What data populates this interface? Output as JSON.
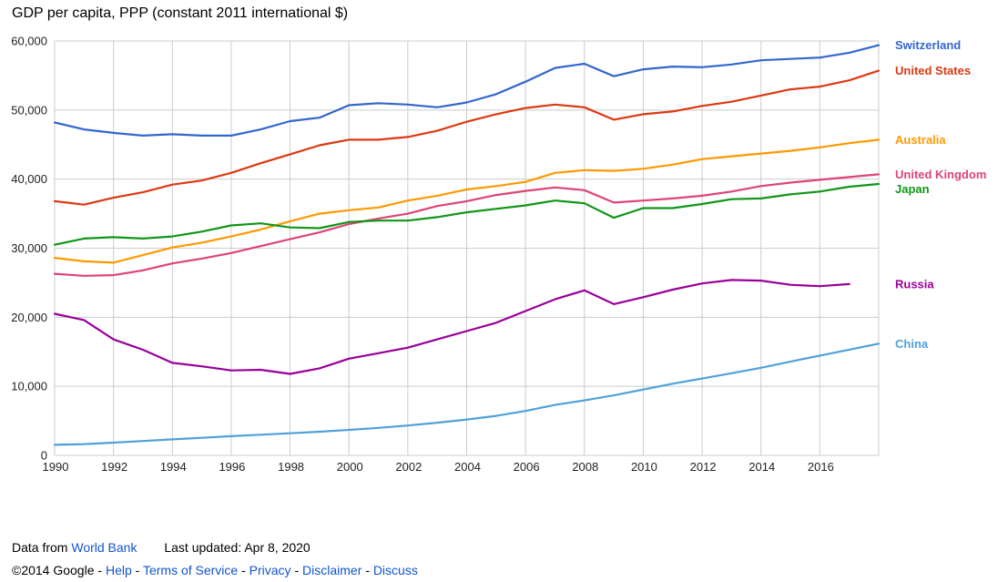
{
  "chart_data": {
    "type": "line",
    "title": "GDP per capita, PPP (constant 2011 international $)",
    "xlim": [
      1990,
      2018
    ],
    "ylim": [
      0,
      60000
    ],
    "grid": true,
    "legend_position": "right-end-labels",
    "x": [
      1990,
      1991,
      1992,
      1993,
      1994,
      1995,
      1996,
      1997,
      1998,
      1999,
      2000,
      2001,
      2002,
      2003,
      2004,
      2005,
      2006,
      2007,
      2008,
      2009,
      2010,
      2011,
      2012,
      2013,
      2014,
      2015,
      2016,
      2017,
      2018
    ],
    "x_ticks": [
      1990,
      1992,
      1994,
      1996,
      1998,
      2000,
      2002,
      2004,
      2006,
      2008,
      2010,
      2012,
      2014,
      2016
    ],
    "x_gridlines": [
      1990,
      1992,
      1994,
      1996,
      1998,
      2000,
      2002,
      2004,
      2006,
      2008,
      2010,
      2012,
      2014,
      2016,
      2018
    ],
    "y_ticks": [
      0,
      10000,
      20000,
      30000,
      40000,
      50000,
      60000
    ],
    "y_tick_labels": [
      "0",
      "10,000",
      "20,000",
      "30,000",
      "40,000",
      "50,000",
      "60,000"
    ],
    "series": [
      {
        "name": "Switzerland",
        "color": "#3366CC",
        "values": [
          48200,
          47200,
          46700,
          46300,
          46500,
          46300,
          46300,
          47200,
          48400,
          48900,
          50700,
          51000,
          50800,
          50400,
          51100,
          52300,
          54100,
          56100,
          56700,
          54900,
          55900,
          56300,
          56200,
          56600,
          57200,
          57400,
          57600,
          58300,
          59400
        ]
      },
      {
        "name": "United States",
        "color": "#DC3912",
        "values": [
          36800,
          36300,
          37300,
          38100,
          39200,
          39800,
          40900,
          42300,
          43600,
          44900,
          45700,
          45700,
          46100,
          47000,
          48300,
          49400,
          50300,
          50800,
          50400,
          48600,
          49400,
          49800,
          50600,
          51200,
          52100,
          53000,
          53400,
          54300,
          55700
        ]
      },
      {
        "name": "Australia",
        "color": "#FF9900",
        "values": [
          28600,
          28100,
          27900,
          29000,
          30100,
          30800,
          31700,
          32700,
          33900,
          35000,
          35500,
          35900,
          36900,
          37600,
          38500,
          39000,
          39600,
          40900,
          41300,
          41200,
          41500,
          42100,
          42900,
          43300,
          43700,
          44100,
          44600,
          45200,
          45700
        ]
      },
      {
        "name": "United Kingdom",
        "color": "#DD4477",
        "values": [
          26300,
          26000,
          26100,
          26800,
          27800,
          28500,
          29300,
          30300,
          31300,
          32300,
          33500,
          34300,
          35000,
          36100,
          36800,
          37700,
          38300,
          38800,
          38400,
          36600,
          36900,
          37200,
          37600,
          38200,
          39000,
          39500,
          39900,
          40300,
          40700
        ]
      },
      {
        "name": "Japan",
        "color": "#109618",
        "values": [
          30500,
          31400,
          31600,
          31400,
          31700,
          32400,
          33300,
          33600,
          33000,
          32900,
          33800,
          34000,
          34000,
          34500,
          35200,
          35700,
          36200,
          36900,
          36500,
          34400,
          35800,
          35800,
          36400,
          37100,
          37200,
          37800,
          38200,
          38900,
          39300
        ]
      },
      {
        "name": "Russia",
        "color": "#990099",
        "values": [
          20500,
          19600,
          16800,
          15300,
          13400,
          12900,
          12300,
          12400,
          11800,
          12600,
          14000,
          14800,
          15600,
          16800,
          18000,
          19200,
          20900,
          22600,
          23900,
          21900,
          22900,
          24000,
          24900,
          25400,
          25300,
          24700,
          24500,
          24800,
          null
        ]
      },
      {
        "name": "China",
        "color": "#4FA1D9",
        "values": [
          1530,
          1630,
          1850,
          2090,
          2320,
          2550,
          2780,
          3000,
          3210,
          3430,
          3690,
          3980,
          4320,
          4740,
          5190,
          5720,
          6430,
          7300,
          7970,
          8690,
          9530,
          10380,
          11130,
          11900,
          12690,
          13570,
          14450,
          15310,
          16180
        ]
      }
    ]
  },
  "footer": {
    "source_prefix": "Data from",
    "source_link": "World Bank",
    "last_updated": "Last updated: Apr 8, 2020",
    "copyright": "©2014 Google",
    "separator": " - ",
    "links": [
      "Help",
      "Terms of Service",
      "Privacy",
      "Disclaimer",
      "Discuss"
    ]
  }
}
